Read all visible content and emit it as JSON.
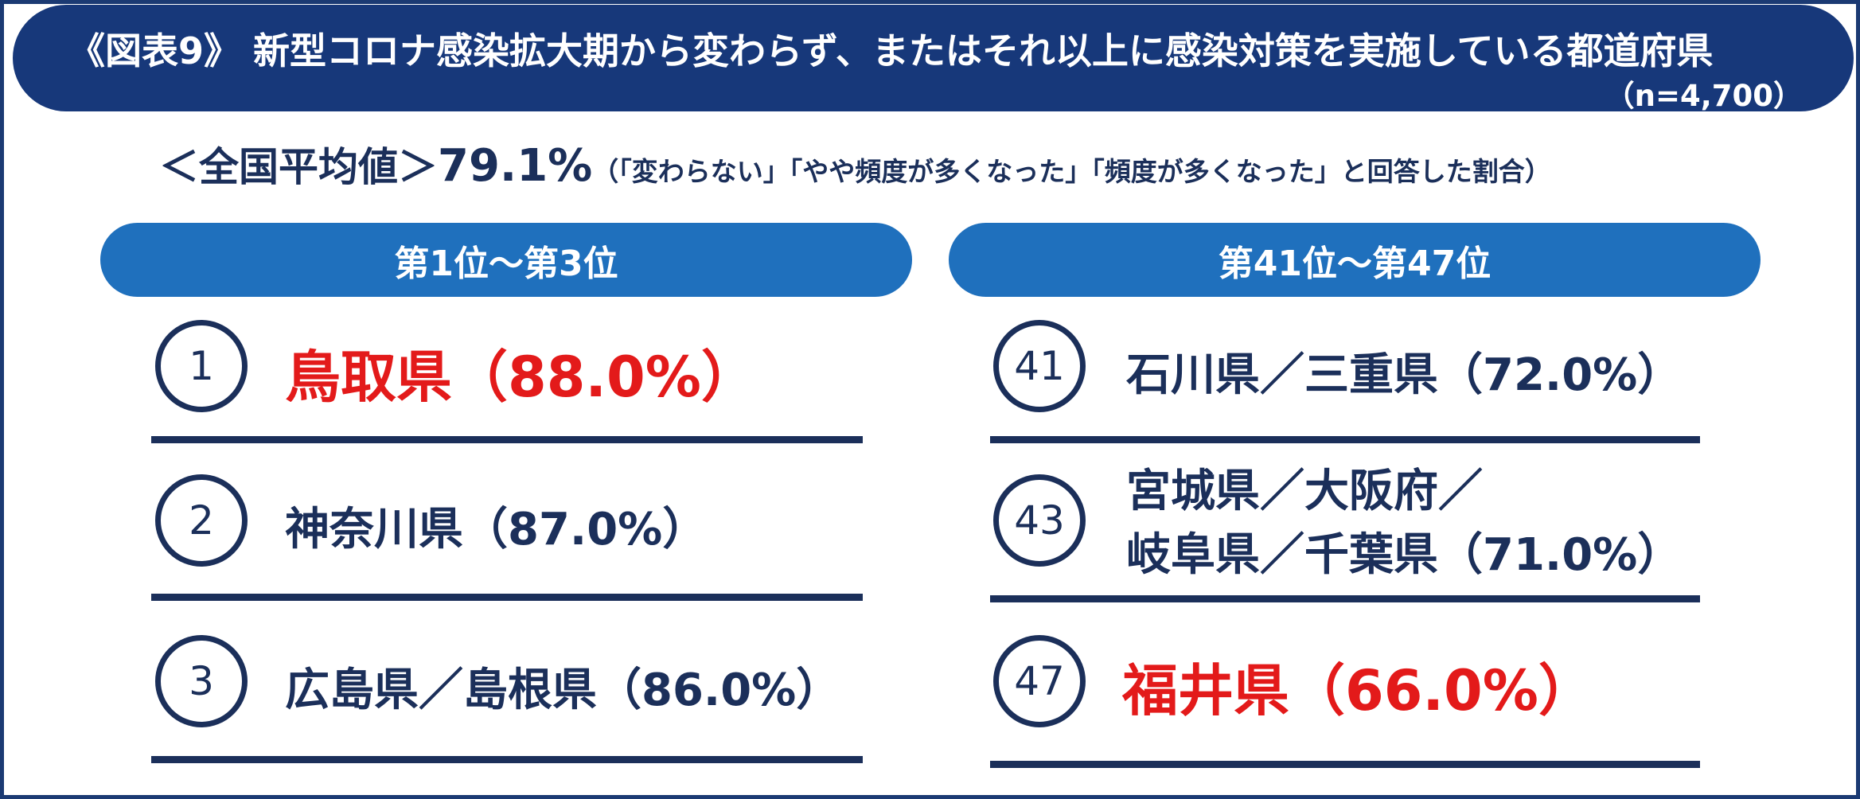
{
  "title": {
    "text": "《図表9》 新型コロナ感染拡大期から変わらず、またはそれ以上に感染対策を実施している都道府県",
    "sample_size": "（n=4,700）"
  },
  "average": {
    "label": "＜全国平均値＞",
    "value": "79.1%",
    "note": "（「変わらない」「やや頻度が多くなった」「頻度が多くなった」と回答した割合）"
  },
  "groups": [
    {
      "header": "第1位～第3位",
      "entries": [
        {
          "rank": "1",
          "name": "鳥取県（88.0%）",
          "highlight": true
        },
        {
          "rank": "2",
          "name": "神奈川県（87.0%）",
          "highlight": false
        },
        {
          "rank": "3",
          "name": "広島県／島根県（86.0%）",
          "highlight": false
        }
      ]
    },
    {
      "header": "第41位～第47位",
      "entries": [
        {
          "rank": "41",
          "name": "石川県／三重県（72.0%）",
          "highlight": false
        },
        {
          "rank": "43",
          "name_line1": "宮城県／大阪府／",
          "name_line2": "岐阜県／千葉県（71.0%）",
          "highlight": false
        },
        {
          "rank": "47",
          "name": "福井県（66.0%）",
          "highlight": true
        }
      ]
    }
  ],
  "colors": {
    "navy": "#1b2f5a",
    "title_bar": "#17387a",
    "header_blue": "#1f70bd",
    "highlight_red": "#e31a1a"
  }
}
